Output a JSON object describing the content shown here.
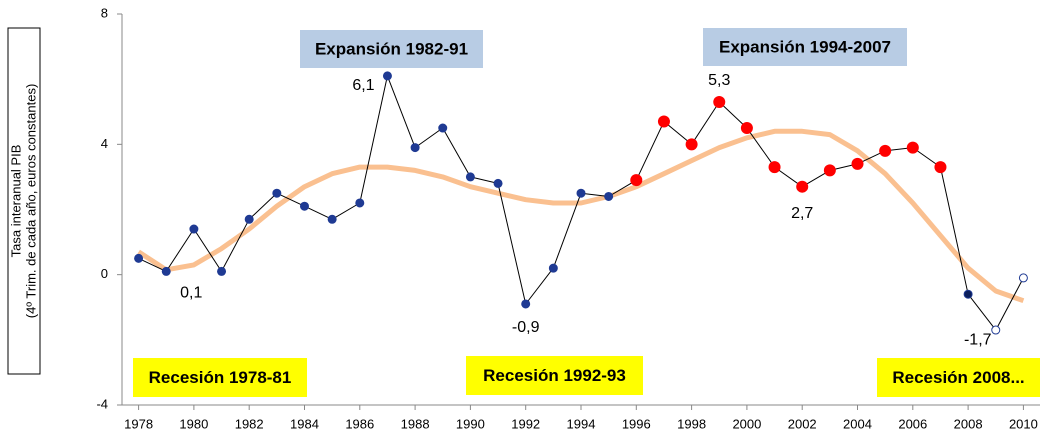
{
  "chart_data": {
    "type": "line",
    "y_label_lines": [
      "Tasa interanual PIB",
      "(4º Trim. de cada año, euros constantes)"
    ],
    "x": [
      1978,
      1979,
      1980,
      1981,
      1982,
      1983,
      1984,
      1985,
      1986,
      1987,
      1988,
      1989,
      1990,
      1991,
      1992,
      1993,
      1994,
      1995,
      1996,
      1997,
      1998,
      1999,
      2000,
      2001,
      2002,
      2003,
      2004,
      2005,
      2006,
      2007,
      2008,
      2009,
      2010
    ],
    "series": [
      {
        "values": [
          0.5,
          0.1,
          1.4,
          0.1,
          1.7,
          2.5,
          2.1,
          1.7,
          2.2,
          6.1,
          3.9,
          4.5,
          3.0,
          2.8,
          -0.9,
          0.2,
          2.5,
          2.4,
          2.9,
          4.7,
          4.0,
          5.3,
          4.5,
          3.3,
          2.7,
          3.2,
          3.4,
          3.8,
          3.9,
          3.3,
          -0.6,
          -1.7,
          -0.1
        ],
        "value_labels": [
          null,
          "0,1",
          null,
          null,
          null,
          null,
          null,
          null,
          null,
          "6,1",
          null,
          null,
          null,
          null,
          "-0,9",
          null,
          null,
          null,
          null,
          null,
          null,
          "5,3",
          null,
          null,
          "2,7",
          null,
          null,
          null,
          null,
          null,
          null,
          "-1,7",
          null
        ],
        "color": "#000000",
        "point_colors": [
          "#1f3a93",
          "#1f3a93",
          "#1f3a93",
          "#1f3a93",
          "#1f3a93",
          "#1f3a93",
          "#1f3a93",
          "#1f3a93",
          "#1f3a93",
          "#1f3a93",
          "#1f3a93",
          "#1f3a93",
          "#1f3a93",
          "#1f3a93",
          "#1f3a93",
          "#1f3a93",
          "#1f3a93",
          "#1f3a93",
          "#ff0000",
          "#ff0000",
          "#ff0000",
          "#ff0000",
          "#ff0000",
          "#ff0000",
          "#ff0000",
          "#ff0000",
          "#ff0000",
          "#ff0000",
          "#ff0000",
          "#ff0000",
          "#0b1e5b",
          "#ffffff",
          "#ffffff"
        ]
      },
      {
        "values": [
          0.7,
          0.15,
          0.3,
          0.8,
          1.4,
          2.1,
          2.7,
          3.1,
          3.3,
          3.3,
          3.2,
          3.0,
          2.7,
          2.5,
          2.3,
          2.2,
          2.2,
          2.4,
          2.7,
          3.1,
          3.5,
          3.9,
          4.2,
          4.4,
          4.4,
          4.3,
          3.8,
          3.1,
          2.2,
          1.2,
          0.2,
          -0.5,
          -0.8
        ],
        "color": "#fac090"
      }
    ],
    "annotations": [
      {
        "text": "Expansión 1982-91",
        "color": "#b8cce4"
      },
      {
        "text": "Expansión 1994-2007",
        "color": "#b8cce4"
      },
      {
        "text": "Recesión 1978-81",
        "color": "#ffff00"
      },
      {
        "text": "Recesión 1992-93",
        "color": "#ffff00"
      },
      {
        "text": "Recesión 2008...",
        "color": "#ffff00"
      }
    ],
    "xlim": [
      1977.4,
      2010.6
    ],
    "xticks": [
      1978,
      1980,
      1982,
      1984,
      1986,
      1988,
      1990,
      1992,
      1994,
      1996,
      1998,
      2000,
      2002,
      2004,
      2006,
      2008,
      2010
    ],
    "ylim": [
      -4,
      8
    ],
    "yticks": [
      -4,
      0,
      4,
      8
    ]
  }
}
